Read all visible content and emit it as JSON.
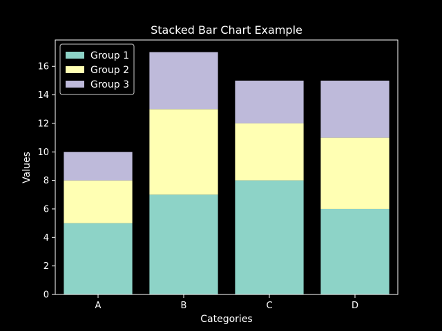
{
  "chart_data": {
    "type": "bar",
    "stacked": true,
    "title": "Stacked Bar Chart Example",
    "xlabel": "Categories",
    "ylabel": "Values",
    "categories": [
      "A",
      "B",
      "C",
      "D"
    ],
    "series": [
      {
        "name": "Group 1",
        "values": [
          5,
          7,
          8,
          6
        ],
        "color": "#8dd3c7"
      },
      {
        "name": "Group 2",
        "values": [
          3,
          6,
          4,
          5
        ],
        "color": "#ffffb3"
      },
      {
        "name": "Group 3",
        "values": [
          2,
          4,
          3,
          4
        ],
        "color": "#bebada"
      }
    ],
    "ylim": [
      0,
      17.85
    ],
    "yticks": [
      "0",
      "2",
      "4",
      "6",
      "8",
      "10",
      "12",
      "14",
      "16"
    ],
    "grid": false,
    "legend_position": "top-left",
    "background_color": "#000000",
    "axis_color": "#ffffff"
  }
}
